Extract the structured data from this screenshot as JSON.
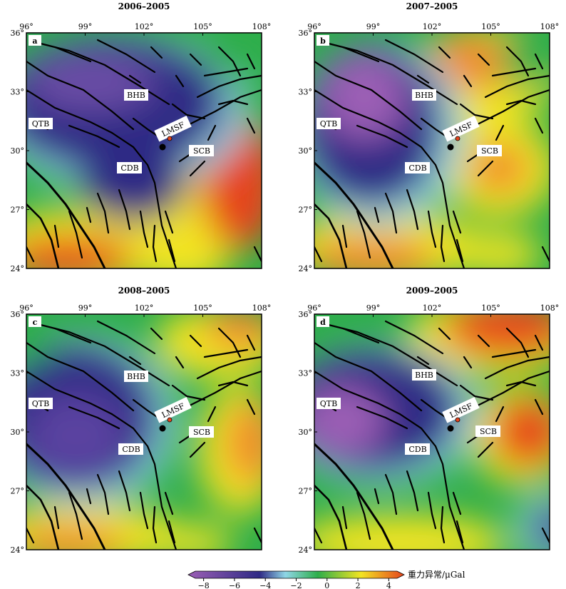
{
  "colorbar": {
    "ticks": [
      "-8",
      "-6",
      "-4",
      "-2",
      "0",
      "2",
      "4"
    ],
    "range": [
      -9,
      5
    ],
    "label": "重力异常/μGal",
    "colors": [
      "#9b5fb5",
      "#2f2a85",
      "#8fd6e6",
      "#2eae4b",
      "#f2e422",
      "#e6441e"
    ]
  },
  "axes": {
    "lon_ticks": [
      "96°",
      "99°",
      "102°",
      "105°",
      "108°"
    ],
    "lat_ticks": [
      "36°",
      "33°",
      "30°",
      "27°",
      "24°"
    ],
    "lon_range": [
      96,
      108
    ],
    "lat_range": [
      24,
      36
    ]
  },
  "panels": [
    {
      "id": "a",
      "title": "2006–2005",
      "letter": "a",
      "labels": {
        "bhb": "BHB",
        "qtb": "QTB",
        "cdb": "CDB",
        "scb": "SCB",
        "lmsf": "LMSF"
      }
    },
    {
      "id": "b",
      "title": "2007–2005",
      "letter": "b",
      "labels": {
        "bhb": "BHB",
        "qtb": "QTB",
        "cdb": "CDB",
        "scb": "SCB",
        "lmsf": "LMSF"
      }
    },
    {
      "id": "c",
      "title": "2008–2005",
      "letter": "c",
      "labels": {
        "bhb": "BHB",
        "qtb": "QTB",
        "cdb": "CDB",
        "scb": "SCB",
        "lmsf": "LMSF"
      }
    },
    {
      "id": "d",
      "title": "2009–2005",
      "letter": "d",
      "labels": {
        "bhb": "BHB",
        "qtb": "QTB",
        "cdb": "CDB",
        "scb": "SCB",
        "lmsf": "LMSF"
      }
    }
  ]
}
